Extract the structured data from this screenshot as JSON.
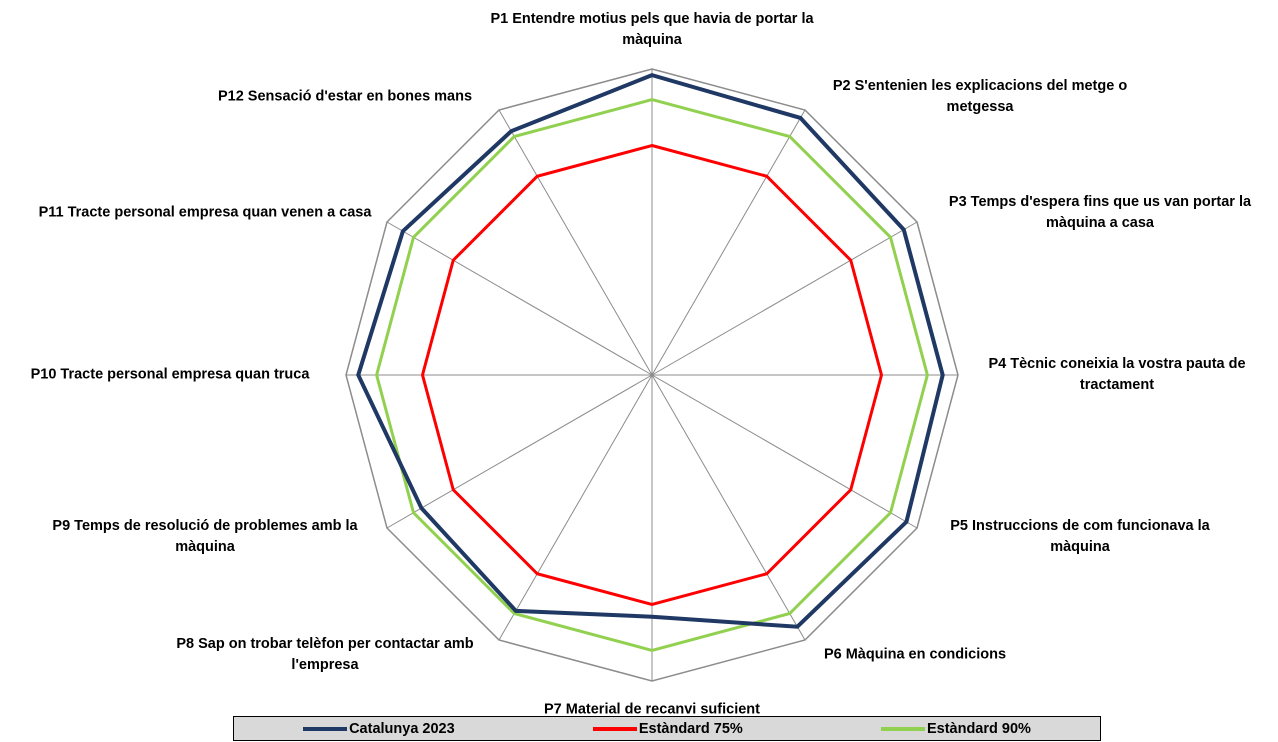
{
  "chart_data": {
    "type": "radar",
    "categories": [
      "P1 Entendre motius pels que havia de portar la màquina",
      "P2 S'entenien les explicacions del metge o metgessa",
      "P3 Temps d'espera fins que us van portar la màquina a casa",
      "P4 Tècnic coneixia la vostra pauta de tractament",
      "P5 Instruccions de com funcionava la màquina",
      "P6 Màquina en condicions",
      "P7 Material de recanvi suficient",
      "P8 Sap on trobar telèfon per contactar amb l'empresa",
      "P9 Temps de resolució de problemes amb la màquina",
      "P10 Tracte personal empresa quan truca",
      "P11 Tracte personal empresa quan venen a casa",
      "P12 Sensació d'estar en bones mans"
    ],
    "series": [
      {
        "name": "Catalunya 2023",
        "color": "#1f3864",
        "values": [
          98,
          97,
          95,
          95,
          96,
          95,
          79,
          89,
          87,
          96,
          94,
          92
        ]
      },
      {
        "name": "Estàndard 75%",
        "color": "#ff0000",
        "values": [
          75,
          75,
          75,
          75,
          75,
          75,
          75,
          75,
          75,
          75,
          75,
          75
        ]
      },
      {
        "name": "Estàndard 90%",
        "color": "#92d050",
        "values": [
          90,
          90,
          90,
          90,
          90,
          90,
          90,
          90,
          90,
          90,
          90,
          90
        ]
      }
    ],
    "ylim": [
      0,
      100
    ],
    "yticks": [
      100
    ],
    "legend": "bottom"
  }
}
